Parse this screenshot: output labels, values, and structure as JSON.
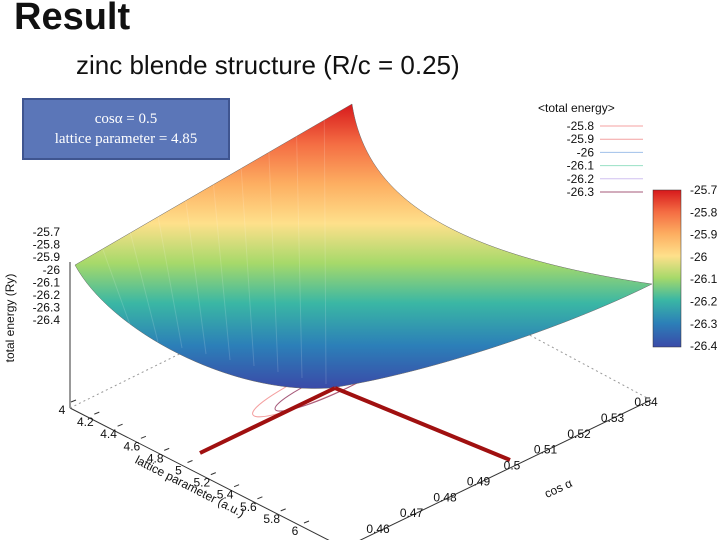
{
  "slide": {
    "heading": "Result"
  },
  "infobox": {
    "line1": "cosα = 0.5",
    "line2": "lattice parameter = 4.85"
  },
  "chart_data": {
    "type": "surface",
    "title": "zinc blende structure (R/c = 0.25)",
    "xlabel": "lattice parameter (a.u.)",
    "ylabel": "cos α",
    "zlabel": "total energy (Ry)",
    "x_ticks": [
      "4",
      "4.2",
      "4.4",
      "4.6",
      "4.8",
      "5",
      "5.2",
      "5.4",
      "5.6",
      "5.8",
      "6"
    ],
    "y_ticks": [
      "0.46",
      "0.47",
      "0.48",
      "0.49",
      "0.5",
      "0.51",
      "0.52",
      "0.53",
      "0.54"
    ],
    "z_ticks": [
      "-25.7",
      "-25.8",
      "-25.9",
      "-26",
      "-26.1",
      "-26.2",
      "-26.3",
      "-26.4"
    ],
    "xlim": [
      4,
      6
    ],
    "ylim": [
      0.46,
      0.54
    ],
    "zlim": [
      -26.4,
      -25.7
    ],
    "surface_corners": [
      {
        "x": 4,
        "y": 0.46,
        "z": -25.92
      },
      {
        "x": 4,
        "y": 0.54,
        "z": -25.66
      },
      {
        "x": 6,
        "y": 0.54,
        "z": -26.08
      },
      {
        "x": 6,
        "y": 0.46,
        "z": -26.2
      }
    ],
    "minimum": {
      "x": 4.85,
      "y": 0.5
    },
    "contour_legend": {
      "title": "<total energy>",
      "levels": [
        "-25.8",
        "-25.9",
        "-26",
        "-26.1",
        "-26.2",
        "-26.3"
      ],
      "colors": [
        "#f4a0a0",
        "#f4a0a0",
        "#a0c0ea",
        "#98e0c4",
        "#d0c0f0",
        "#a65a7a"
      ]
    },
    "colorbar": {
      "labels": [
        "-25.7",
        "-25.8",
        "-25.9",
        "-26",
        "-26.1",
        "-26.2",
        "-26.3",
        "-26.4"
      ],
      "colors": [
        "#d7191c",
        "#f46d43",
        "#fdae61",
        "#fee08b",
        "#a6d96a",
        "#3ab7a4",
        "#2c7fb8",
        "#3a4aa8"
      ]
    },
    "marker_color": "#a01010"
  }
}
